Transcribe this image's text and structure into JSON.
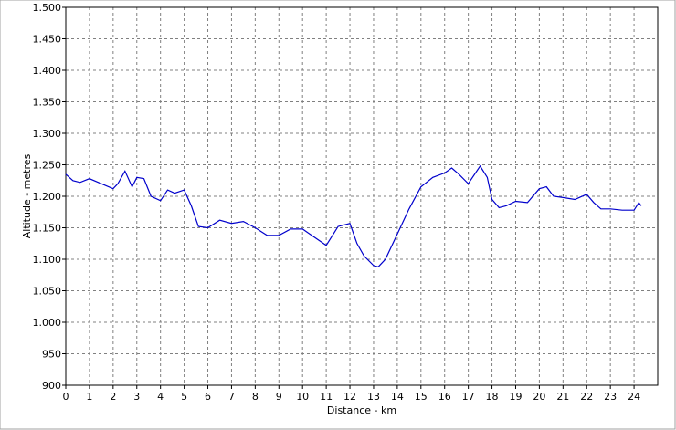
{
  "chart_data": {
    "type": "line",
    "x_label": "Distance - km",
    "y_label": "Altitude - metres",
    "x": [
      0,
      0.3,
      0.6,
      1.0,
      1.5,
      2.0,
      2.2,
      2.5,
      2.8,
      3.0,
      3.3,
      3.6,
      4.0,
      4.3,
      4.6,
      5.0,
      5.3,
      5.6,
      6.0,
      6.5,
      7.0,
      7.5,
      8.0,
      8.5,
      9.0,
      9.5,
      10.0,
      10.5,
      11.0,
      11.5,
      12.0,
      12.3,
      12.6,
      13.0,
      13.2,
      13.5,
      14.0,
      14.5,
      15.0,
      15.5,
      16.0,
      16.3,
      16.6,
      17.0,
      17.5,
      17.8,
      18.0,
      18.3,
      18.6,
      19.0,
      19.5,
      20.0,
      20.3,
      20.6,
      21.0,
      21.5,
      22.0,
      22.3,
      22.6,
      23.0,
      23.5,
      24.0,
      24.2,
      24.3
    ],
    "series": [
      {
        "name": "Altitude",
        "color": "#0000cc",
        "values": [
          1235,
          1225,
          1222,
          1228,
          1220,
          1212,
          1220,
          1240,
          1215,
          1230,
          1228,
          1200,
          1193,
          1210,
          1205,
          1210,
          1185,
          1152,
          1150,
          1162,
          1157,
          1160,
          1150,
          1138,
          1138,
          1148,
          1148,
          1135,
          1122,
          1152,
          1157,
          1125,
          1105,
          1090,
          1088,
          1100,
          1140,
          1180,
          1215,
          1230,
          1237,
          1245,
          1235,
          1220,
          1248,
          1230,
          1195,
          1182,
          1185,
          1192,
          1190,
          1212,
          1215,
          1200,
          1198,
          1195,
          1203,
          1190,
          1180,
          1180,
          1178,
          1178,
          1190,
          1185
        ]
      }
    ],
    "xlim": [
      0,
      25
    ],
    "xticks": [
      0,
      1,
      2,
      3,
      4,
      5,
      6,
      7,
      8,
      9,
      10,
      11,
      12,
      13,
      14,
      15,
      16,
      17,
      18,
      19,
      20,
      21,
      22,
      23,
      24
    ],
    "ylim": [
      900,
      1500
    ],
    "yticks": [
      900,
      950,
      {
        "value": 1000,
        "label": "1.000"
      },
      {
        "value": 1050,
        "label": "1.050"
      },
      {
        "value": 1100,
        "label": "1.100"
      },
      {
        "value": 1150,
        "label": "1.150"
      },
      {
        "value": 1200,
        "label": "1.200"
      },
      {
        "value": 1250,
        "label": "1.250"
      },
      {
        "value": 1300,
        "label": "1.300"
      },
      {
        "value": 1350,
        "label": "1.350"
      },
      {
        "value": 1400,
        "label": "1.400"
      },
      {
        "value": 1450,
        "label": "1.450"
      },
      {
        "value": 1500,
        "label": "1.500"
      }
    ],
    "grid": true
  }
}
